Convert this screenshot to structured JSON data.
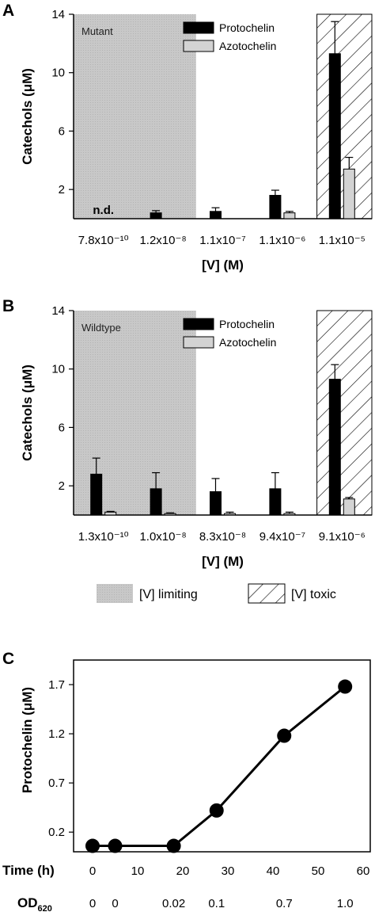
{
  "chart_data": [
    {
      "type": "bar",
      "panel": "A",
      "region_label": "Mutant",
      "ylabel": "Catechols (μM)",
      "xlabel": "[V] (M)",
      "ylim": [
        0,
        14
      ],
      "yticks": [
        2,
        6,
        10,
        14
      ],
      "categories": [
        "7.8x10⁻¹⁰",
        "1.2x10⁻⁸",
        "1.1x10⁻⁷",
        "1.1x10⁻⁶",
        "1.1x10⁻⁵"
      ],
      "series": [
        {
          "name": "Protochelin",
          "color": "#000000",
          "values": [
            0,
            0.4,
            0.5,
            1.6,
            11.3
          ],
          "errors": [
            0,
            0.15,
            0.25,
            0.35,
            2.2
          ]
        },
        {
          "name": "Azotochelin",
          "color": "#d3d3d3",
          "values": [
            0,
            0,
            0,
            0.4,
            3.4
          ],
          "errors": [
            0,
            0,
            0,
            0.1,
            0.8
          ]
        }
      ],
      "annotation": "n.d.",
      "limiting_categories": [
        0,
        1
      ],
      "toxic_categories": [
        4
      ]
    },
    {
      "type": "bar",
      "panel": "B",
      "region_label": "Wildtype",
      "ylabel": "Catechols (μM)",
      "xlabel": "[V] (M)",
      "ylim": [
        0,
        14
      ],
      "yticks": [
        2,
        6,
        10,
        14
      ],
      "categories": [
        "1.3x10⁻¹⁰",
        "1.0x10⁻⁸",
        "8.3x10⁻⁸",
        "9.4x10⁻⁷",
        "9.1x10⁻⁶"
      ],
      "series": [
        {
          "name": "Protochelin",
          "color": "#000000",
          "values": [
            2.8,
            1.8,
            1.6,
            1.8,
            9.3
          ],
          "errors": [
            1.1,
            1.1,
            0.9,
            1.1,
            1.0
          ]
        },
        {
          "name": "Azotochelin",
          "color": "#d3d3d3",
          "values": [
            0.2,
            0.1,
            0.1,
            0.1,
            1.1
          ],
          "errors": [
            0.05,
            0.05,
            0.1,
            0.1,
            0.1
          ]
        }
      ],
      "limiting_categories": [
        0,
        1
      ],
      "toxic_categories": [
        4
      ]
    },
    {
      "type": "line",
      "panel": "C",
      "ylabel": "Protochelin (μM)",
      "xlabel": "Time (h)",
      "secondary_xlabel": "OD620",
      "ylim": [
        0,
        1.95
      ],
      "yticks": [
        0.2,
        0.7,
        1.2,
        1.7
      ],
      "xlim": [
        0,
        60
      ],
      "xticks": [
        0,
        10,
        20,
        30,
        40,
        50,
        60
      ],
      "x": [
        0,
        5,
        18,
        27.5,
        42.5,
        56
      ],
      "y": [
        0.06,
        0.06,
        0.06,
        0.42,
        1.18,
        1.68
      ],
      "od_labels": [
        {
          "x": 0,
          "label": "0"
        },
        {
          "x": 5,
          "label": "0"
        },
        {
          "x": 18,
          "label": "0.02"
        },
        {
          "x": 27.5,
          "label": "0.1"
        },
        {
          "x": 42.5,
          "label": "0.7"
        },
        {
          "x": 56,
          "label": "1.0"
        }
      ]
    }
  ],
  "shared_legend": {
    "limiting": "[V] limiting",
    "toxic": "[V] toxic"
  }
}
